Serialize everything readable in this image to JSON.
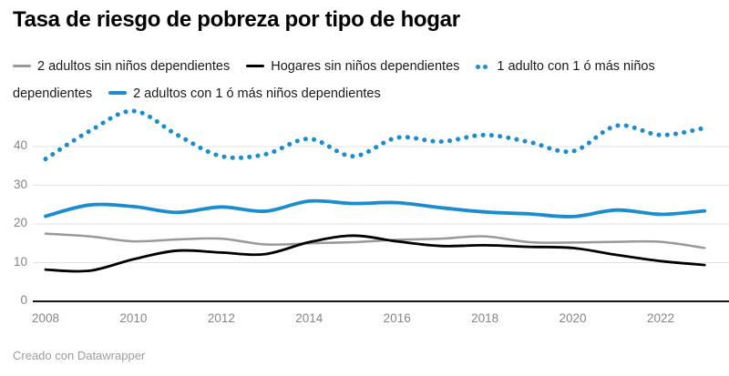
{
  "header": {
    "title": "Tasa de riesgo de pobreza por tipo de hogar"
  },
  "footer": {
    "credit": "Creado con Datawrapper"
  },
  "colors": {
    "accent_blue": "#1b8dce",
    "gray_line": "#999999",
    "black_line": "#000000",
    "grid": "#e2e2e2",
    "baseline": "#151515",
    "axis_text": "#858585"
  },
  "chart_data": {
    "type": "line",
    "title": "Tasa de riesgo de pobreza por tipo de hogar",
    "xlabel": "",
    "ylabel": "",
    "x": [
      2008,
      2009,
      2010,
      2011,
      2012,
      2013,
      2014,
      2015,
      2016,
      2017,
      2018,
      2019,
      2020,
      2021,
      2022,
      2023
    ],
    "series": [
      {
        "name": "2 adultos sin niños dependientes",
        "color": "#999999",
        "line_style": "solid",
        "line_width": 2.5,
        "values": [
          17.5,
          16.8,
          15.5,
          16.0,
          16.2,
          14.7,
          15.0,
          15.3,
          15.9,
          16.2,
          16.8,
          15.3,
          15.2,
          15.4,
          15.4,
          13.8
        ]
      },
      {
        "name": "Hogares sin niños dependientes",
        "color": "#000000",
        "line_style": "solid",
        "line_width": 2.8,
        "values": [
          8.2,
          7.9,
          10.9,
          13.1,
          12.6,
          12.2,
          15.3,
          17.0,
          15.5,
          14.3,
          14.5,
          14.1,
          13.8,
          12.0,
          10.4,
          9.4
        ]
      },
      {
        "name": "1 adulto con 1 ó más niños dependientes",
        "color": "#1b8dce",
        "line_style": "dotted",
        "line_width": 5,
        "values": [
          36.8,
          44.0,
          49.2,
          43.0,
          37.5,
          38.0,
          42.0,
          37.5,
          42.3,
          41.3,
          43.0,
          41.2,
          38.8,
          45.4,
          43.0,
          44.8
        ]
      },
      {
        "name": "2 adultos con 1 ó más niños dependientes",
        "color": "#1b8dce",
        "line_style": "solid",
        "line_width": 3.8,
        "values": [
          22.0,
          24.9,
          24.5,
          23.0,
          24.4,
          23.3,
          25.9,
          25.3,
          25.5,
          24.2,
          23.1,
          22.6,
          21.9,
          23.6,
          22.5,
          23.4
        ]
      }
    ],
    "y_ticks": [
      0,
      10,
      20,
      30,
      40
    ],
    "x_ticks": [
      2008,
      2010,
      2012,
      2014,
      2016,
      2018,
      2020,
      2022
    ],
    "ylim": [
      0,
      52
    ],
    "xlim": [
      2008,
      2023
    ],
    "grid": "horizontal",
    "legend_position": "top"
  }
}
